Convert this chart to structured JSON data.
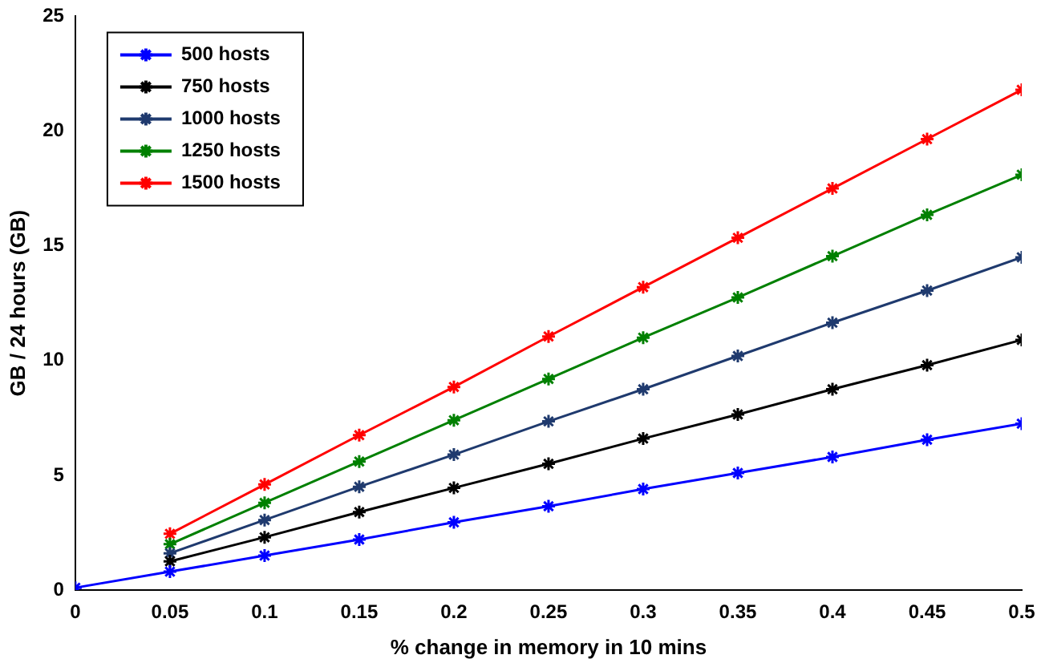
{
  "chart_data": {
    "type": "line",
    "xlabel": "% change in memory in 10 mins",
    "ylabel": "GB / 24 hours (GB)",
    "x": [
      0,
      0.05,
      0.1,
      0.15,
      0.2,
      0.25,
      0.3,
      0.35,
      0.4,
      0.45,
      0.5
    ],
    "series": [
      {
        "name": "500 hosts",
        "color": "#0000ff",
        "values": [
          0.1,
          0.8,
          1.5,
          2.2,
          2.95,
          3.65,
          4.4,
          5.1,
          5.8,
          6.55,
          7.25
        ]
      },
      {
        "name": "750 hosts",
        "color": "#000000",
        "values": [
          null,
          1.25,
          2.3,
          3.4,
          4.45,
          5.5,
          6.6,
          7.65,
          8.75,
          9.8,
          10.9
        ]
      },
      {
        "name": "1000 hosts",
        "color": "#1f3a6e",
        "values": [
          null,
          1.6,
          3.05,
          4.5,
          5.9,
          7.35,
          8.75,
          10.2,
          11.65,
          13.05,
          14.5
        ]
      },
      {
        "name": "1250 hosts",
        "color": "#008000",
        "values": [
          null,
          2.0,
          3.8,
          5.6,
          7.4,
          9.2,
          11.0,
          12.75,
          14.55,
          16.35,
          18.1
        ]
      },
      {
        "name": "1500 hosts",
        "color": "#ff0000",
        "values": [
          null,
          2.45,
          4.6,
          6.75,
          8.85,
          11.05,
          13.2,
          15.35,
          17.5,
          19.65,
          21.8
        ]
      }
    ],
    "xlim": [
      0,
      0.5
    ],
    "xticks": [
      0,
      0.05,
      0.1,
      0.15,
      0.2,
      0.25,
      0.3,
      0.35,
      0.4,
      0.45,
      0.5
    ],
    "ylim": [
      0,
      25
    ],
    "yticks": [
      0,
      5,
      10,
      15,
      20,
      25
    ],
    "grid": false,
    "legend": "top left",
    "marker": "cross",
    "line_style": "solid"
  }
}
